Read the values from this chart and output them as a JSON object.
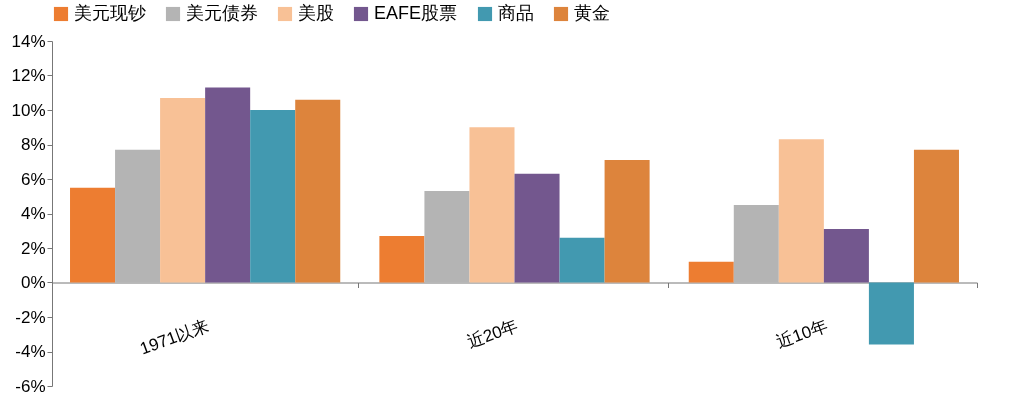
{
  "chart_data": {
    "type": "bar",
    "categories": [
      "1971以来",
      "近20年",
      "近10年"
    ],
    "series": [
      {
        "name": "美元现钞",
        "color": "#ed7d31",
        "values": [
          5.5,
          2.7,
          1.2
        ]
      },
      {
        "name": "美元债券",
        "color": "#b4b4b4",
        "values": [
          7.7,
          5.3,
          4.5
        ]
      },
      {
        "name": "美股",
        "color": "#f8c196",
        "values": [
          10.7,
          9.0,
          8.3
        ]
      },
      {
        "name": "EAFE股票",
        "color": "#73578e",
        "values": [
          11.3,
          6.3,
          3.1
        ]
      },
      {
        "name": "商品",
        "color": "#4299b0",
        "values": [
          10.0,
          2.6,
          -3.6
        ]
      },
      {
        "name": "黄金",
        "color": "#dd843c",
        "values": [
          10.6,
          7.1,
          7.7
        ]
      }
    ],
    "ylim": [
      -6,
      14
    ],
    "yticks": [
      {
        "value": -6,
        "label": "-6%"
      },
      {
        "value": -4,
        "label": "-4%"
      },
      {
        "value": -2,
        "label": "-2%"
      },
      {
        "value": 0,
        "label": "0%"
      },
      {
        "value": 2,
        "label": "2%"
      },
      {
        "value": 4,
        "label": "4%"
      },
      {
        "value": 6,
        "label": "6%"
      },
      {
        "value": 8,
        "label": "8%"
      },
      {
        "value": 10,
        "label": "10%"
      },
      {
        "value": 12,
        "label": "12%"
      },
      {
        "value": 14,
        "label": "14%"
      }
    ],
    "grid": false,
    "legend": "top"
  }
}
